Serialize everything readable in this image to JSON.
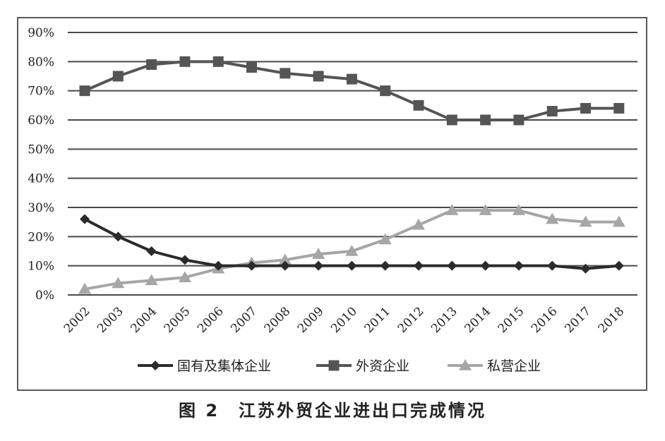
{
  "caption": "图 2　江苏外贸企业进出口完成情况",
  "chart_data": {
    "type": "line",
    "title": "",
    "xlabel": "",
    "ylabel": "",
    "categories": [
      "2002",
      "2003",
      "2004",
      "2005",
      "2006",
      "2007",
      "2008",
      "2009",
      "2010",
      "2011",
      "2012",
      "2013",
      "2014",
      "2015",
      "2016",
      "2017",
      "2018"
    ],
    "ylim": [
      0,
      90
    ],
    "yticks": [
      0,
      10,
      20,
      30,
      40,
      50,
      60,
      70,
      80,
      90
    ],
    "ytick_labels": [
      "0%",
      "10%",
      "20%",
      "30%",
      "40%",
      "50%",
      "60%",
      "70%",
      "80%",
      "90%"
    ],
    "grid": "horizontal",
    "legend_position": "bottom",
    "series": [
      {
        "name": "国有及集体企业",
        "marker": "diamond",
        "color": "#2b2b2b",
        "values": [
          26,
          20,
          15,
          12,
          10,
          10,
          10,
          10,
          10,
          10,
          10,
          10,
          10,
          10,
          10,
          9,
          10
        ]
      },
      {
        "name": "外资企业",
        "marker": "square",
        "color": "#555555",
        "values": [
          70,
          75,
          79,
          80,
          80,
          78,
          76,
          75,
          74,
          70,
          65,
          60,
          60,
          60,
          63,
          64,
          64
        ]
      },
      {
        "name": "私营企业",
        "marker": "triangle",
        "color": "#a6a6a6",
        "values": [
          2,
          4,
          5,
          6,
          9,
          11,
          12,
          14,
          15,
          19,
          24,
          29,
          29,
          29,
          26,
          25,
          25
        ]
      }
    ]
  }
}
